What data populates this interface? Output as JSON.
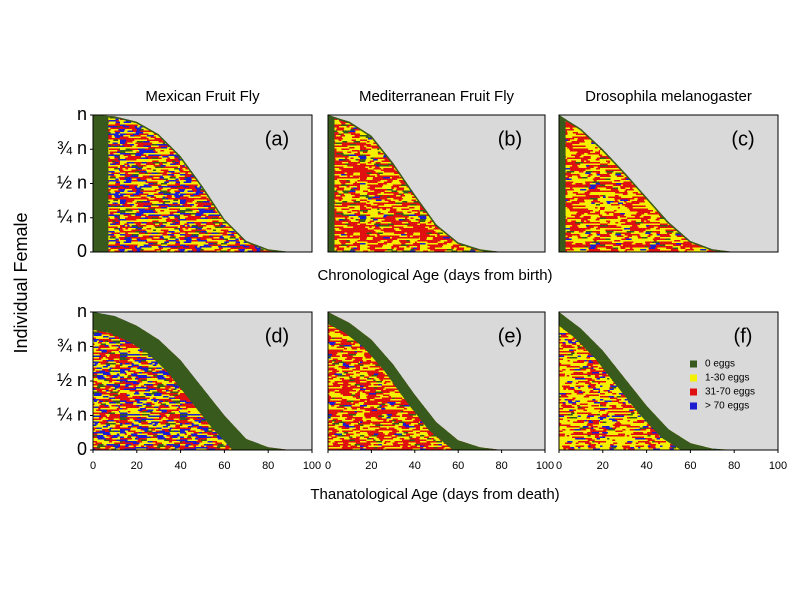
{
  "ylabel": "Individual Female",
  "top_xlabel": "Chronological Age (days from birth)",
  "bottom_xlabel": "Thanatological Age (days from death)",
  "legend": [
    {
      "name": "0 eggs",
      "color": "#385a1c"
    },
    {
      "name": "1-30 eggs",
      "color": "#f5ef00"
    },
    {
      "name": "31-70 eggs",
      "color": "#e01010"
    },
    {
      "name": "> 70 eggs",
      "color": "#1c1cd0"
    }
  ],
  "chart_data": [
    {
      "type": "area",
      "title": "Mexican Fruit Fly",
      "label": "(a)",
      "green_band": 7,
      "x": [
        0,
        10,
        20,
        30,
        40,
        50,
        60,
        70,
        80,
        90
      ],
      "values": [
        1,
        0.99,
        0.95,
        0.86,
        0.7,
        0.48,
        0.24,
        0.08,
        0.02,
        0
      ],
      "xlim": [
        0,
        100
      ],
      "ylim": [
        0,
        1
      ],
      "yticks": [
        0,
        {
          "value": 0.25,
          "label": "¼ n"
        },
        {
          "value": 0.5,
          "label": "½ n"
        },
        {
          "value": 0.75,
          "label": "¾ n"
        },
        {
          "value": 1,
          "label": "n"
        }
      ]
    },
    {
      "type": "area",
      "title": "Mediterranean Fruit Fly",
      "label": "(b)",
      "green_band": 3,
      "x": [
        0,
        10,
        20,
        30,
        40,
        50,
        60,
        70,
        80
      ],
      "values": [
        1,
        0.95,
        0.85,
        0.65,
        0.42,
        0.2,
        0.07,
        0.02,
        0
      ],
      "xlim": [
        0,
        100
      ],
      "ylim": [
        0,
        1
      ]
    },
    {
      "type": "area",
      "title": "Drosophila melanogaster",
      "label": "(c)",
      "green_band": 3,
      "x": [
        0,
        10,
        20,
        30,
        40,
        50,
        60,
        70,
        80
      ],
      "values": [
        1,
        0.9,
        0.75,
        0.58,
        0.4,
        0.22,
        0.08,
        0.02,
        0
      ],
      "xlim": [
        0,
        100
      ],
      "ylim": [
        0,
        1
      ]
    },
    {
      "type": "area_death",
      "label": "(d)",
      "green_band": 8,
      "x": [
        0,
        10,
        20,
        30,
        40,
        50,
        60,
        70,
        80,
        90
      ],
      "values": [
        1,
        0.97,
        0.9,
        0.8,
        0.65,
        0.45,
        0.25,
        0.08,
        0.02,
        0
      ],
      "xlim": [
        0,
        100
      ],
      "ylim": [
        0,
        1
      ],
      "xticks": [
        0,
        20,
        40,
        60,
        80,
        100
      ],
      "yticks": [
        0,
        {
          "value": 0.25,
          "label": "¼ n"
        },
        {
          "value": 0.5,
          "label": "½ n"
        },
        {
          "value": 0.75,
          "label": "¾ n"
        },
        {
          "value": 1,
          "label": "n"
        }
      ]
    },
    {
      "type": "area_death",
      "label": "(e)",
      "green_band": 5,
      "x": [
        0,
        10,
        20,
        30,
        40,
        50,
        60,
        70,
        80
      ],
      "values": [
        1,
        0.92,
        0.8,
        0.62,
        0.4,
        0.2,
        0.07,
        0.02,
        0
      ],
      "xlim": [
        0,
        100
      ],
      "ylim": [
        0,
        1
      ],
      "xticks": [
        0,
        20,
        40,
        60,
        80,
        100
      ]
    },
    {
      "type": "area_death",
      "label": "(f)",
      "green_band": 5,
      "show_legend": true,
      "x": [
        0,
        10,
        20,
        30,
        40,
        50,
        60,
        70,
        80
      ],
      "values": [
        1,
        0.88,
        0.72,
        0.52,
        0.32,
        0.15,
        0.05,
        0.01,
        0
      ],
      "xlim": [
        0,
        100
      ],
      "ylim": [
        0,
        1
      ],
      "xticks": [
        0,
        20,
        40,
        60,
        80,
        100
      ]
    }
  ]
}
